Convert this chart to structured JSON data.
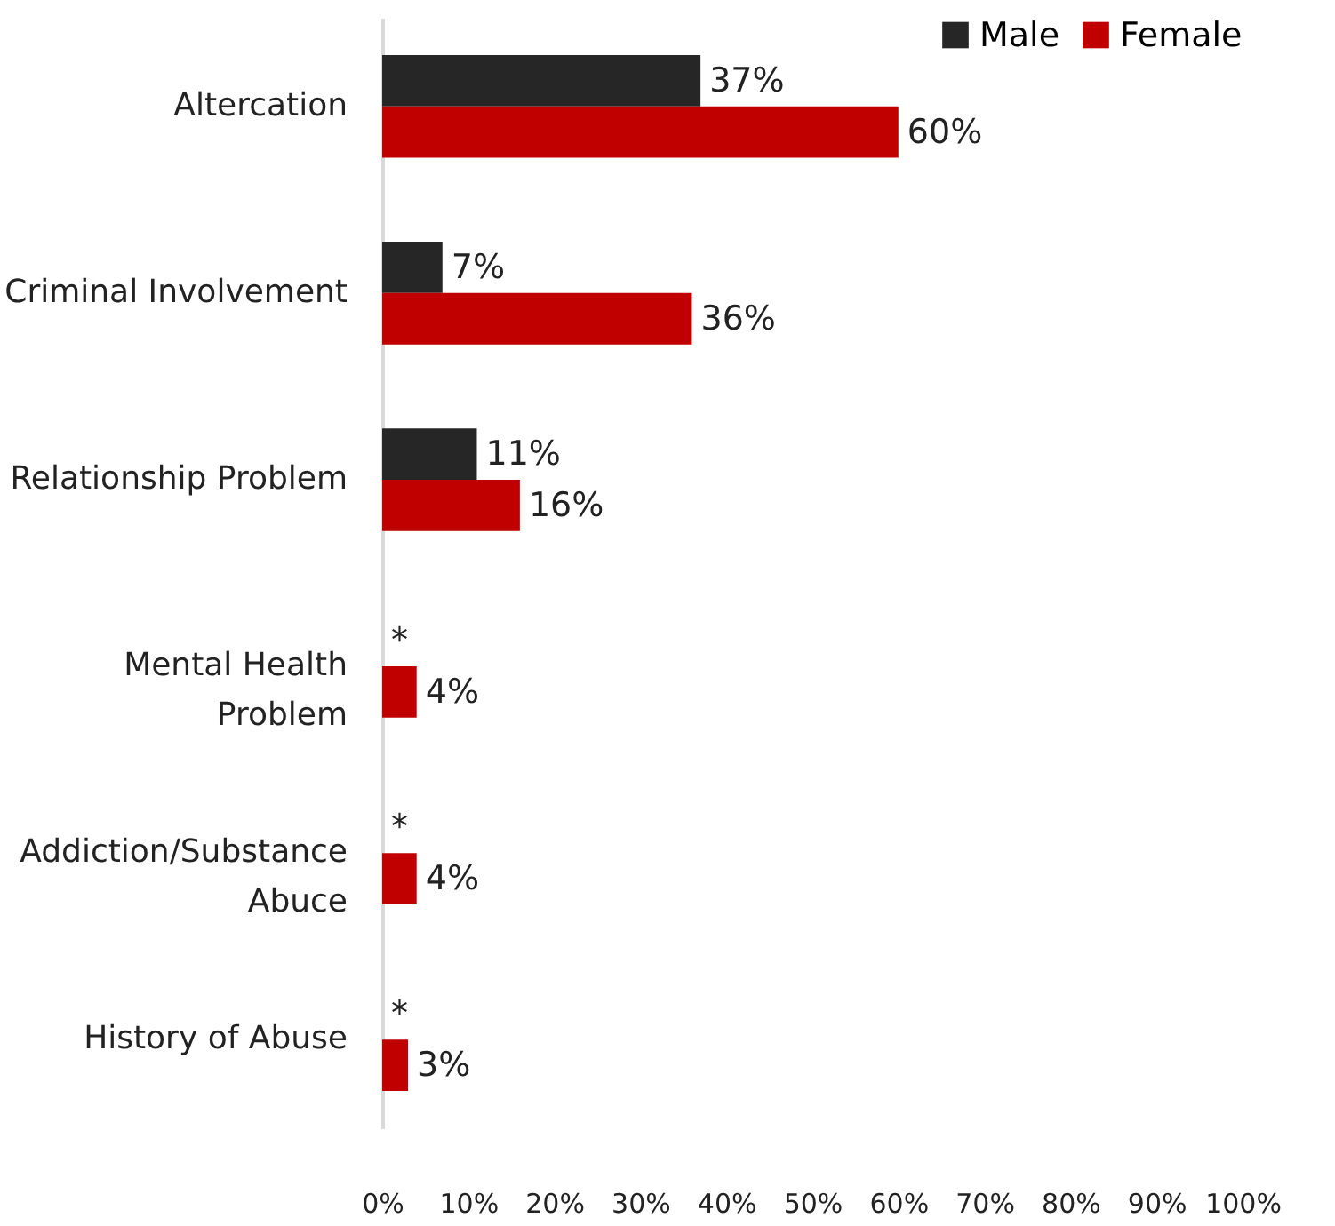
{
  "chart_data": {
    "type": "bar",
    "orientation": "horizontal",
    "categories": [
      "Altercation",
      "Criminal Involvement",
      "Relationship Problem",
      "Mental Health Problem",
      "Addiction/Substance Abuce",
      "History of Abuse"
    ],
    "series": [
      {
        "name": "Male",
        "color": "#262626",
        "values": [
          37,
          7,
          11,
          null,
          null,
          null
        ],
        "value_labels": [
          "37%",
          "7%",
          "11%",
          "*",
          "*",
          "*"
        ]
      },
      {
        "name": "Female",
        "color": "#c00000",
        "values": [
          60,
          36,
          16,
          4,
          4,
          3
        ],
        "value_labels": [
          "60%",
          "36%",
          "16%",
          "4%",
          "4%",
          "3%"
        ]
      }
    ],
    "xlim": [
      0,
      100
    ],
    "xticks": [
      {
        "value": 0,
        "label": "0%"
      },
      {
        "value": 10,
        "label": "10%"
      },
      {
        "value": 20,
        "label": "20%"
      },
      {
        "value": 30,
        "label": "30%"
      },
      {
        "value": 40,
        "label": "40%"
      },
      {
        "value": 50,
        "label": "50%"
      },
      {
        "value": 60,
        "label": "60%"
      },
      {
        "value": 70,
        "label": "70%"
      },
      {
        "value": 80,
        "label": "80%"
      },
      {
        "value": 90,
        "label": "90%"
      },
      {
        "value": 100,
        "label": "100%"
      }
    ],
    "grid": false,
    "legend": "top right"
  }
}
